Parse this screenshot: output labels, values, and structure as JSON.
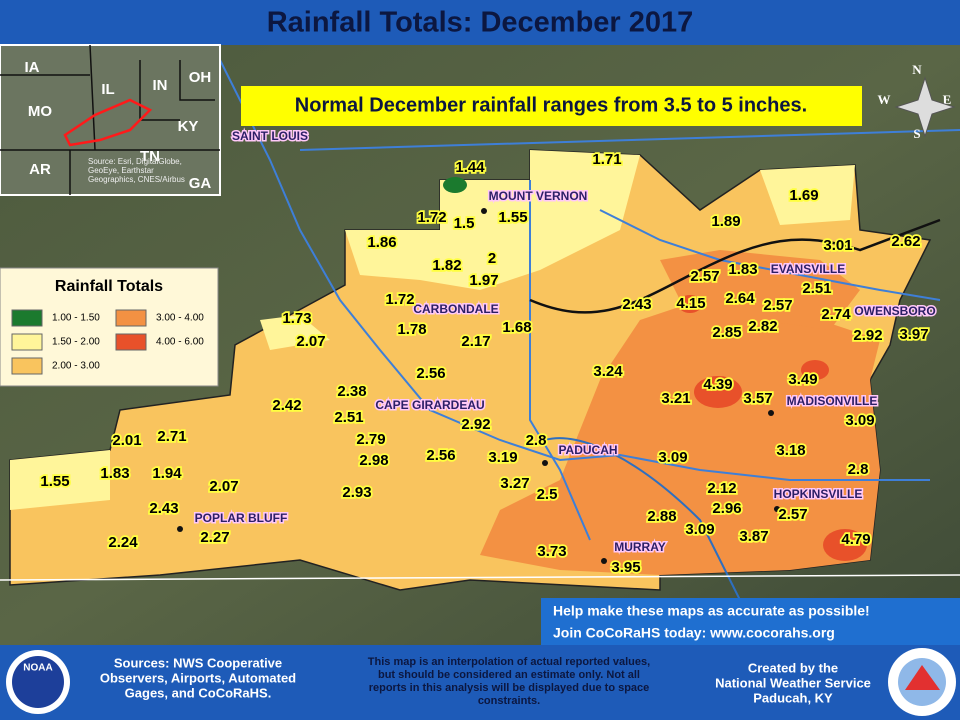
{
  "title": "Rainfall Totals: December 2017",
  "subtitle": "Normal December rainfall ranges from 3.5 to 5 inches.",
  "legend": {
    "title": "Rainfall Totals",
    "items": [
      {
        "label": "1.00 - 1.50",
        "color": "#1b7a2e"
      },
      {
        "label": "1.50 - 2.00",
        "color": "#fff59a"
      },
      {
        "label": "2.00 - 3.00",
        "color": "#f9c45e"
      },
      {
        "label": "3.00 - 4.00",
        "color": "#f39143"
      },
      {
        "label": "4.00 - 6.00",
        "color": "#e8512a"
      }
    ]
  },
  "inset": {
    "labels": [
      "IA",
      "IL",
      "IN",
      "OH",
      "MO",
      "KY",
      "AR",
      "TN",
      "GA"
    ],
    "source": [
      "Source: Esri, DigitalGlobe,",
      "GeoEye, Earthstar",
      "Geographics, CNES/Airbus"
    ]
  },
  "compass": [
    "N",
    "E",
    "S",
    "W"
  ],
  "cities": [
    "SAINT LOUIS",
    "MOUNT VERNON",
    "EVANSVILLE",
    "CARBONDALE",
    "OWENSBORO",
    "CAPE GIRARDEAU",
    "MADISONVILLE",
    "PADUCAH",
    "HOPKINSVILLE",
    "POPLAR BLUFF",
    "MURRAY"
  ],
  "values": [
    1.44,
    1.71,
    1.69,
    1.72,
    1.5,
    1.55,
    1.89,
    3.01,
    2.62,
    1.86,
    1.82,
    2,
    1.97,
    2.57,
    1.83,
    2.51,
    1.72,
    2.43,
    4.15,
    2.64,
    2.57,
    2.74,
    1.73,
    1.78,
    1.68,
    2.85,
    2.82,
    2.92,
    3.97,
    2.07,
    2.17,
    3.24,
    2.56,
    4.39,
    3.49,
    2.38,
    2.42,
    3.21,
    3.57,
    2.51,
    2.92,
    3.09,
    2.01,
    2.71,
    2.79,
    2.8,
    3.19,
    3.09,
    3.18,
    2.98,
    2.56,
    1.55,
    1.83,
    1.94,
    2.8,
    2.07,
    3.27,
    2.12,
    2.93,
    2.5,
    2.96,
    2.43,
    2.88,
    2.57,
    2.27,
    2.24,
    3.09,
    3.87,
    4.79,
    3.73,
    3.95
  ],
  "cocorahs": [
    "Help make these maps as accurate as possible!",
    "Join CoCoRaHS today: www.cocorahs.org"
  ],
  "footer": {
    "sources": [
      "Sources: NWS Cooperative",
      "Observers, Airports, Automated",
      "Gages, and CoCoRaHS."
    ],
    "disclaimer": [
      "This map is an interpolation of actual reported values,",
      "but should be considered an estimate only. Not all",
      "reports in this analysis will be displayed due to space",
      "constraints."
    ],
    "credit": [
      "Created by the",
      "National Weather Service",
      "Paducah, KY"
    ]
  }
}
